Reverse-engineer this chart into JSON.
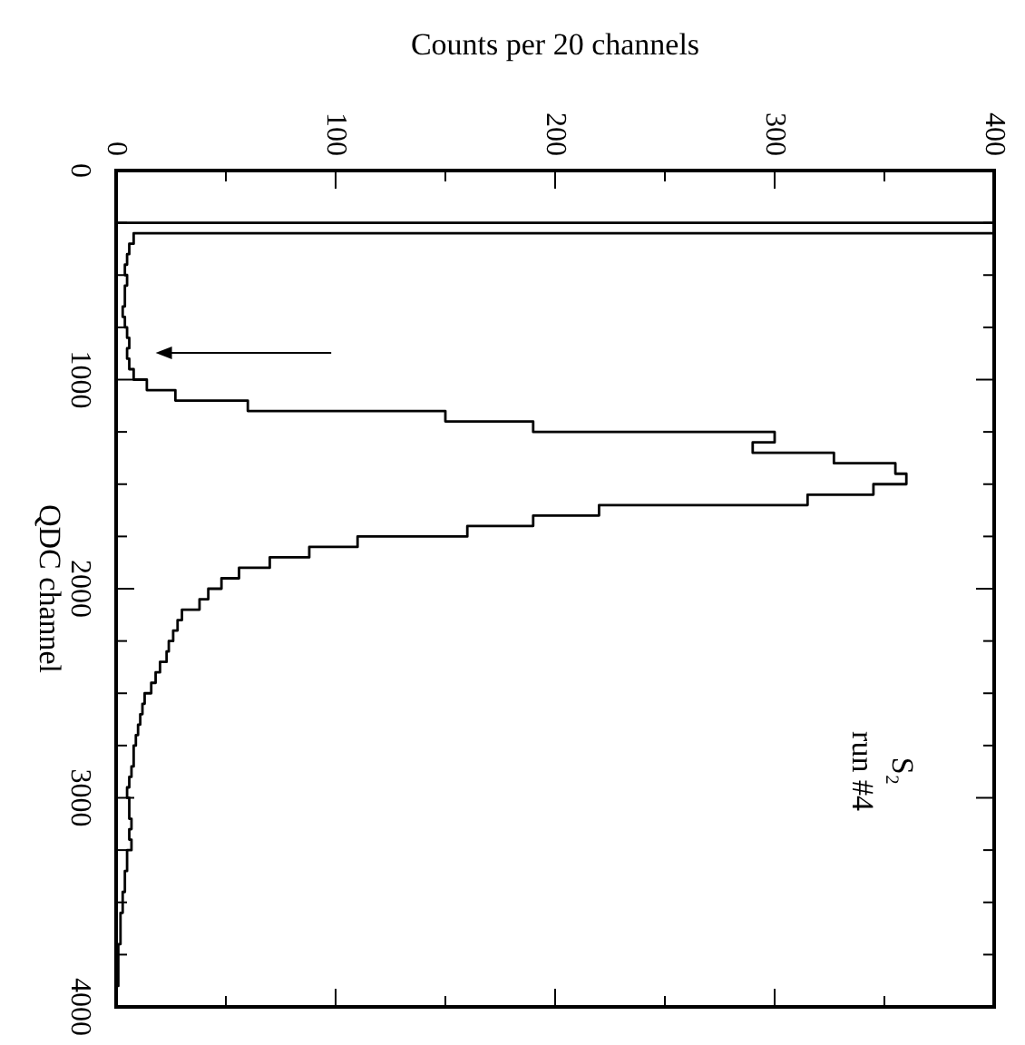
{
  "chart_data": {
    "type": "histogram",
    "orientation": "horizontal",
    "color": "#000000",
    "xlabel": "Counts per 20 channels",
    "ylabel": "QDC channel",
    "bins": [
      0,
      50,
      100,
      150,
      200,
      250,
      300,
      350,
      400,
      450,
      500,
      550,
      600,
      650,
      700,
      750,
      800,
      850,
      900,
      950,
      1000,
      1050,
      1100,
      1150,
      1200,
      1250,
      1300,
      1350,
      1400,
      1450,
      1500,
      1550,
      1600,
      1650,
      1700,
      1750,
      1800,
      1850,
      1900,
      1950,
      2000,
      2050,
      2100,
      2150,
      2200,
      2250,
      2300,
      2350,
      2400,
      2450,
      2500,
      2550,
      2600,
      2650,
      2700,
      2750,
      2800,
      2850,
      2900,
      2950,
      3000,
      3050,
      3100,
      3150,
      3200,
      3250,
      3300,
      3350,
      3400,
      3450,
      3500,
      3550,
      3600,
      3650,
      3700,
      3750,
      3800,
      3850,
      3900,
      3950,
      4000
    ],
    "values": [
      0,
      0,
      0,
      0,
      0,
      400,
      8,
      6,
      5,
      4,
      5,
      4,
      4,
      3,
      4,
      5,
      6,
      5,
      6,
      8,
      14,
      27,
      60,
      150,
      190,
      300,
      290,
      327,
      355,
      360,
      345,
      315,
      220,
      190,
      160,
      110,
      88,
      70,
      56,
      48,
      42,
      38,
      30,
      28,
      26,
      24,
      23,
      20,
      18,
      16,
      13,
      12,
      11,
      10,
      9,
      8,
      8,
      7,
      6,
      5,
      6,
      6,
      7,
      6,
      7,
      5,
      5,
      4,
      4,
      3,
      3,
      2,
      2,
      2,
      1,
      1,
      1,
      1,
      0,
      0
    ],
    "xlim": [
      0,
      400
    ],
    "xticks": [
      0,
      {
        "value": 50,
        "label": null
      },
      100,
      {
        "value": 150,
        "label": null
      },
      200,
      {
        "value": 250,
        "label": null
      },
      300,
      {
        "value": 350,
        "label": null
      },
      400
    ],
    "ylim": [
      4000,
      0
    ],
    "yticks": [
      0,
      {
        "value": 250,
        "label": null
      },
      {
        "value": 500,
        "label": null
      },
      {
        "value": 750,
        "label": null
      },
      1000,
      {
        "value": 1250,
        "label": null
      },
      {
        "value": 1500,
        "label": null
      },
      {
        "value": 1750,
        "label": null
      },
      2000,
      {
        "value": 2250,
        "label": null
      },
      {
        "value": 2500,
        "label": null
      },
      {
        "value": 2750,
        "label": null
      },
      3000,
      {
        "value": 3250,
        "label": null
      },
      {
        "value": 3500,
        "label": null
      },
      {
        "value": 3750,
        "label": null
      },
      4000
    ],
    "annotations": [
      "S₂",
      "run #4"
    ]
  }
}
